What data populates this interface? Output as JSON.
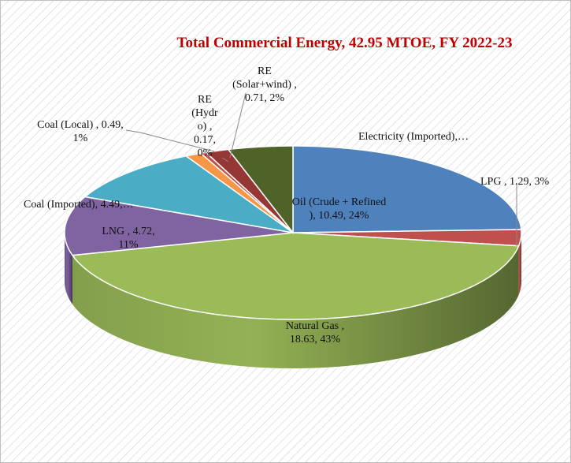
{
  "chart_data": {
    "type": "pie",
    "title": "Total Commercial Energy, 42.95 MTOE, FY 2022-23",
    "values": [
      10.49,
      1.29,
      18.63,
      4.72,
      4.49,
      0.49,
      0.17,
      0.71,
      1.96
    ],
    "value_labels": [
      "Oil (Crude + Refined ), 10.49, 24%",
      "LPG , 1.29, 3%",
      "Natural Gas , 18.63, 43%",
      "LNG , 4.72, 11%",
      "Coal (Imported), 4.49,…",
      "Coal (Local) , 0.49, 1%",
      "RE (Hydr o) , 0.17, 0%",
      "RE (Solar+wind) , 0.71, 2%",
      "Electricity (Imported),…"
    ],
    "colors": [
      "#4f81bd",
      "#c0504d",
      "#9bbb59",
      "#8064a2",
      "#4bacc6",
      "#f79646",
      "#c0504d",
      "#953735",
      "#4f6228"
    ]
  }
}
